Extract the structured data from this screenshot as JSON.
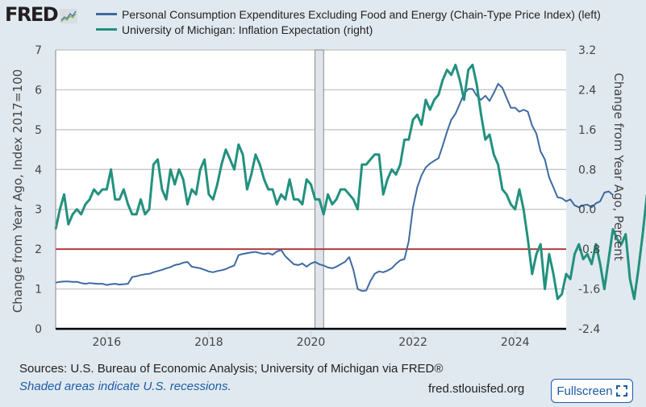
{
  "brand": {
    "logo_text": "FRED",
    "logo_mark": "registered-trademark"
  },
  "colors": {
    "pce_series": "#3e6aa2",
    "umich_series": "#22917e",
    "reference_line": "#b03c3c",
    "recession_shade": "#dfe5ea",
    "background": "#e1e9f0",
    "link": "#1a5ca8"
  },
  "chart_data": {
    "type": "line",
    "title": "",
    "xlabel": "",
    "ylabel_left": "Change from Year Ago, Index 2017=100",
    "ylabel_right": "Change from Year Ago, Percent",
    "xlim": [
      2015.0,
      2025.0
    ],
    "ylim_left": [
      0,
      7
    ],
    "ylim_right": [
      -2.4,
      3.2
    ],
    "x_ticks": [
      2016,
      2018,
      2020,
      2022,
      2024
    ],
    "x_tick_labels": [
      "2016",
      "2018",
      "2020",
      "2022",
      "2024"
    ],
    "y_ticks_left": [
      "0",
      "1",
      "2",
      "3",
      "4",
      "5",
      "6",
      "7"
    ],
    "y_ticks_right": [
      "-2.4",
      "-1.6",
      "-0.8",
      "0.0",
      "0.8",
      "1.6",
      "2.4",
      "3.2"
    ],
    "grid": true,
    "legend_position": "top",
    "recessions": [
      {
        "start": 2020.08,
        "end": 2020.25
      }
    ],
    "reference_lines": [
      {
        "axis": "left",
        "value": 2.0,
        "label": ""
      }
    ],
    "x_start": 2015.0,
    "x_step": 0.08333,
    "series": [
      {
        "name": "Personal Consumption Expenditures Excluding Food and Energy (Chain-Type Price Index) (left)",
        "axis": "left",
        "values": [
          1.16,
          1.18,
          1.19,
          1.19,
          1.18,
          1.18,
          1.15,
          1.13,
          1.15,
          1.14,
          1.13,
          1.13,
          1.1,
          1.12,
          1.13,
          1.11,
          1.12,
          1.13,
          1.3,
          1.32,
          1.35,
          1.37,
          1.38,
          1.42,
          1.45,
          1.48,
          1.52,
          1.55,
          1.6,
          1.62,
          1.66,
          1.68,
          1.56,
          1.54,
          1.52,
          1.48,
          1.44,
          1.42,
          1.45,
          1.47,
          1.5,
          1.55,
          1.59,
          1.85,
          1.88,
          1.9,
          1.92,
          1.93,
          1.9,
          1.88,
          1.9,
          1.86,
          1.94,
          1.98,
          1.82,
          1.72,
          1.62,
          1.6,
          1.64,
          1.56,
          1.64,
          1.68,
          1.62,
          1.59,
          1.54,
          1.52,
          1.56,
          1.62,
          1.68,
          1.8,
          1.48,
          1.0,
          0.95,
          0.96,
          1.2,
          1.38,
          1.44,
          1.42,
          1.46,
          1.52,
          1.63,
          1.72,
          1.75,
          2.2,
          3.05,
          3.55,
          3.85,
          4.05,
          4.15,
          4.22,
          4.28,
          4.6,
          4.95,
          5.25,
          5.4,
          5.65,
          5.9,
          6.02,
          6.02,
          5.85,
          5.75,
          5.85,
          5.72,
          5.92,
          6.15,
          6.05,
          5.8,
          5.55,
          5.55,
          5.45,
          5.5,
          5.45,
          5.1,
          4.9,
          4.45,
          4.25,
          3.8,
          3.55,
          3.3,
          3.28,
          3.2,
          3.25,
          3.1,
          3.05,
          3.1,
          3.12,
          3.05,
          3.15,
          3.2,
          3.42,
          3.45,
          3.36
        ]
      },
      {
        "name": "University of Michigan: Inflation Expectation (right)",
        "axis": "right",
        "values": [
          -0.4,
          0.0,
          0.3,
          -0.3,
          -0.1,
          0.0,
          -0.1,
          0.1,
          0.2,
          0.4,
          0.3,
          0.4,
          0.4,
          0.8,
          0.2,
          0.2,
          0.4,
          0.1,
          -0.1,
          -0.1,
          0.2,
          -0.1,
          0.0,
          0.9,
          1.0,
          0.4,
          0.2,
          0.8,
          0.5,
          0.8,
          0.6,
          0.1,
          0.4,
          0.3,
          0.8,
          1.0,
          0.3,
          0.2,
          0.5,
          0.9,
          1.2,
          1.0,
          0.8,
          1.3,
          1.1,
          0.4,
          0.7,
          1.1,
          0.9,
          0.6,
          0.4,
          0.4,
          0.1,
          0.3,
          0.2,
          0.6,
          0.2,
          0.2,
          0.1,
          0.6,
          0.5,
          0.2,
          0.2,
          -0.1,
          0.3,
          0.1,
          0.2,
          0.4,
          0.4,
          0.3,
          0.2,
          0.0,
          0.9,
          0.9,
          1.0,
          1.1,
          1.1,
          0.3,
          0.6,
          0.8,
          0.7,
          0.9,
          1.4,
          1.4,
          1.8,
          1.9,
          1.7,
          2.2,
          2.0,
          2.2,
          2.3,
          2.6,
          2.8,
          2.7,
          2.9,
          2.6,
          2.2,
          2.8,
          2.9,
          2.5,
          1.9,
          1.4,
          1.5,
          1.1,
          0.9,
          0.4,
          0.3,
          0.1,
          0.0,
          0.4,
          0.0,
          -0.6,
          -1.3,
          -0.9,
          -0.7,
          -1.6,
          -0.9,
          -1.3,
          -1.8,
          -1.7,
          -1.3,
          -1.4,
          -0.9,
          -0.7,
          -1.0,
          -0.9,
          -1.1,
          -0.7,
          -1.1,
          -1.6,
          -1.0,
          -0.4,
          -0.6,
          -0.7,
          -0.5,
          -1.4,
          -1.8,
          -1.2,
          -0.5,
          0.3
        ]
      }
    ]
  },
  "legend": {
    "items": [
      {
        "label": "Personal Consumption Expenditures Excluding Food and Energy (Chain-Type Price Index) (left)",
        "color": "#3e6aa2"
      },
      {
        "label": "University of Michigan: Inflation Expectation (right)",
        "color": "#22917e"
      }
    ]
  },
  "footer": {
    "sources": "Sources: U.S. Bureau of Economic Analysis; University of Michigan via FRED®",
    "recession_note": "Shaded areas indicate U.S. recessions.",
    "url": "fred.stlouisfed.org",
    "fullscreen_label": "Fullscreen"
  }
}
